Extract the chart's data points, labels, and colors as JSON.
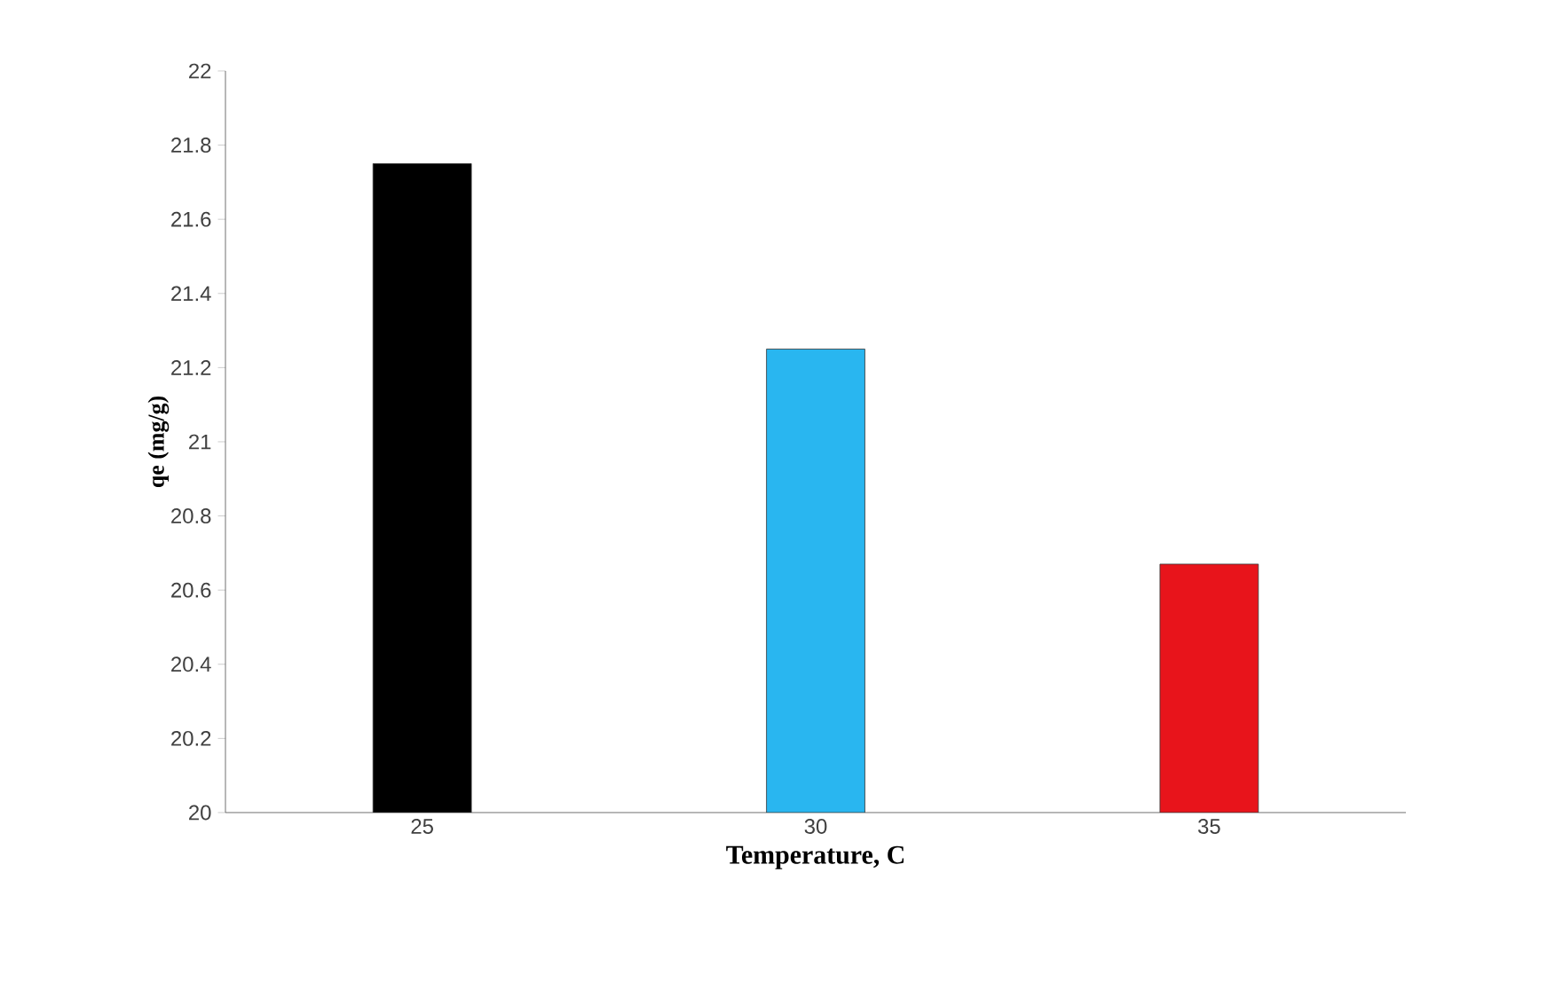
{
  "chart_data": {
    "type": "bar",
    "categories": [
      "25",
      "30",
      "35"
    ],
    "values": [
      21.75,
      21.25,
      20.67
    ],
    "colors": [
      "#000000",
      "#29b6f0",
      "#e8141b"
    ],
    "xlabel": "Temperature,  C",
    "ylabel": "qe  (mg/g)",
    "ylim": [
      20,
      22
    ],
    "yticks": [
      20,
      20.2,
      20.4,
      20.6,
      20.8,
      21,
      21.2,
      21.4,
      21.6,
      21.8,
      22
    ],
    "grid": false
  }
}
